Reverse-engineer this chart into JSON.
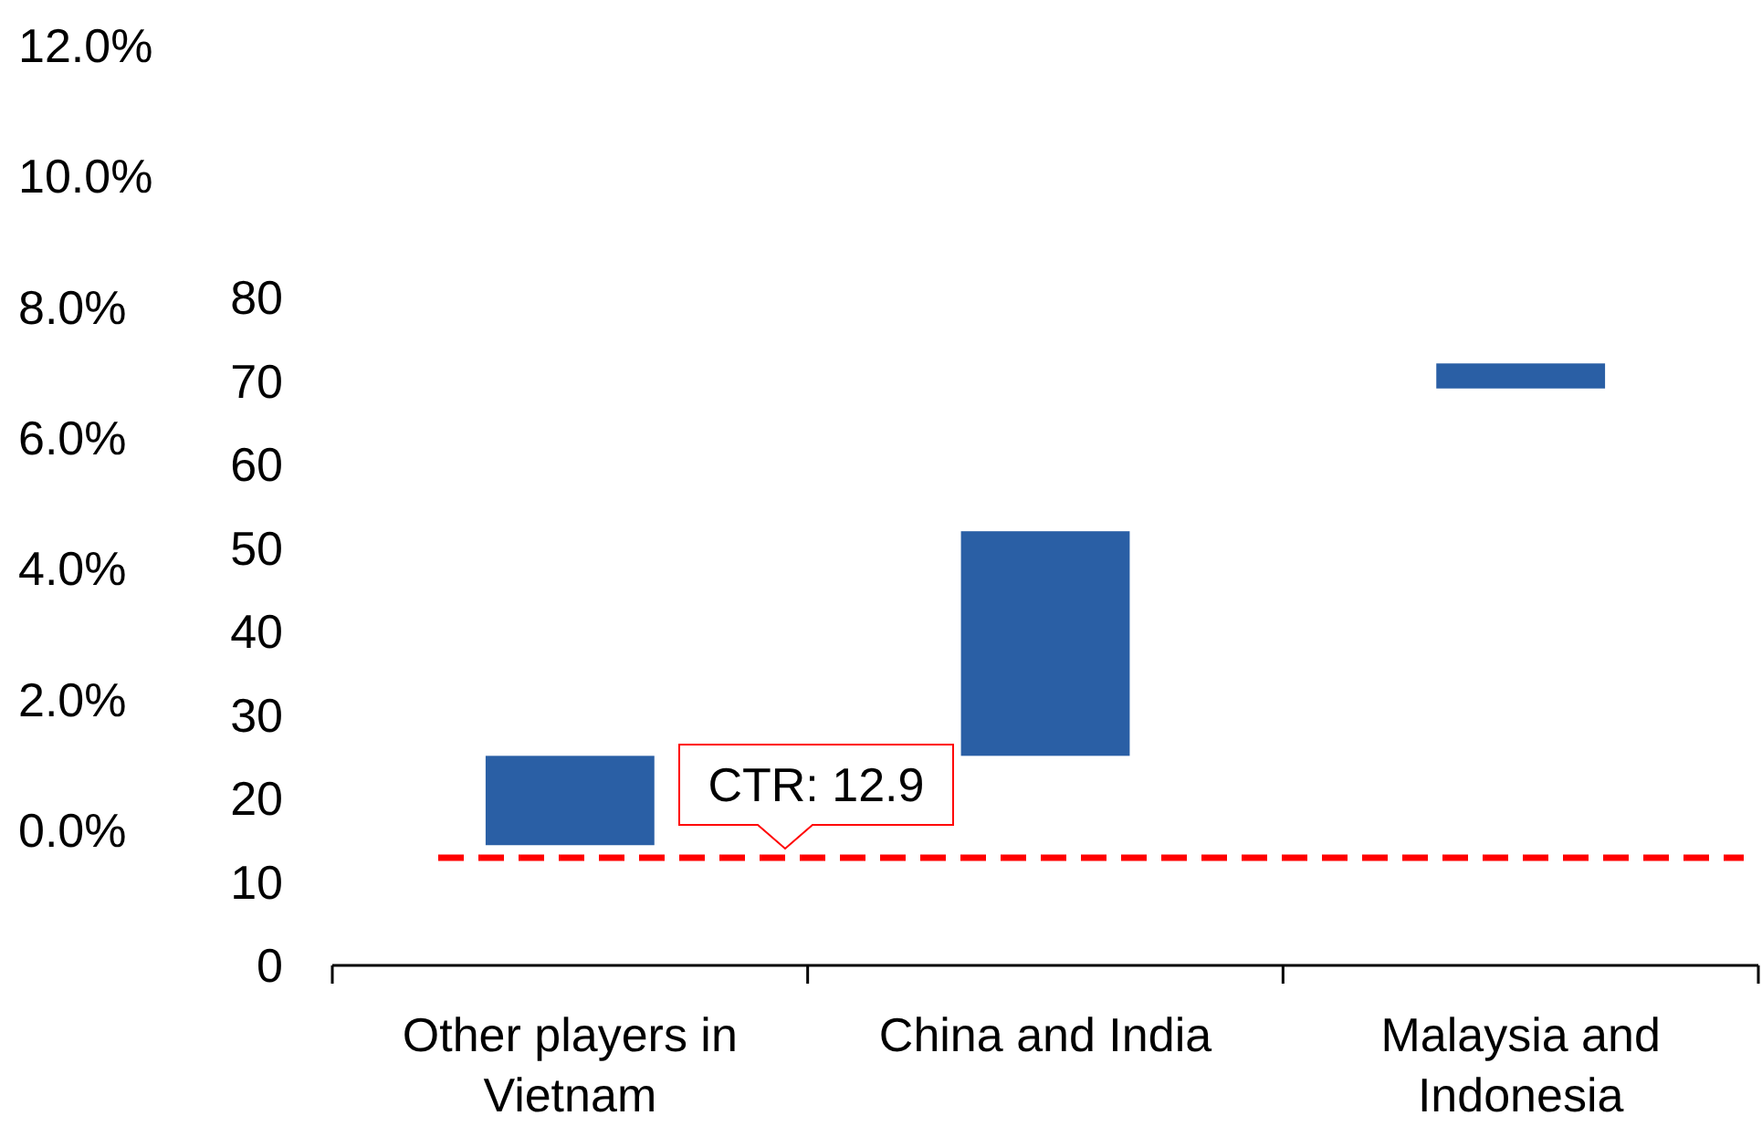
{
  "chart_data": {
    "type": "bar",
    "categories": [
      "Other players in Vietnam",
      "China and India",
      "Malaysia and Indonesia"
    ],
    "values": [
      10.7,
      26.9,
      3.0
    ],
    "base": [
      14.4,
      25.1,
      69.1
    ],
    "color": "#2a5fa5",
    "ylim": [
      0,
      80
    ],
    "yticks": [
      0,
      10,
      20,
      30,
      40,
      50,
      60,
      70,
      80
    ],
    "y2lim": [
      -2.07,
      12
    ],
    "y2ticks": [
      {
        "value": 0,
        "label": "0.0%"
      },
      {
        "value": 2,
        "label": "2.0%"
      },
      {
        "value": 4,
        "label": "4.0%"
      },
      {
        "value": 6,
        "label": "6.0%"
      },
      {
        "value": 8,
        "label": "8.0%"
      },
      {
        "value": 10,
        "label": "10.0%"
      },
      {
        "value": 12,
        "label": "12.0%"
      }
    ],
    "ref_lines": [
      {
        "axis": "y",
        "value": 12.9,
        "label": "CTR: 12.9",
        "color": "#ff0000",
        "line_style": "dashed"
      }
    ],
    "grid": false,
    "legend": false
  }
}
